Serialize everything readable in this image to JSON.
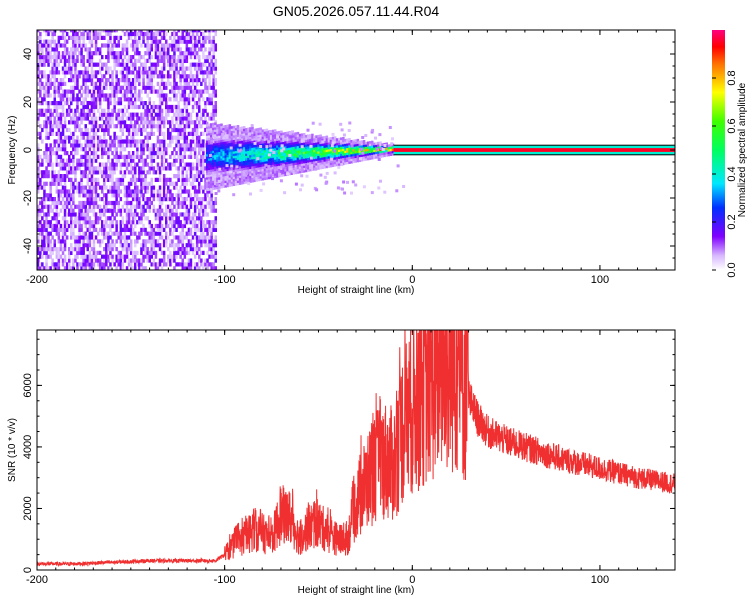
{
  "title": "GN05.2026.057.11.44.R04",
  "chart_data": [
    {
      "type": "heatmap",
      "xlabel": "Height of straight line (km)",
      "ylabel": "Frequency (Hz)",
      "xlim": [
        -200,
        140
      ],
      "ylim": [
        -50,
        50
      ],
      "xticks": [
        -200,
        -100,
        0,
        100
      ],
      "yticks": [
        -40,
        -20,
        0,
        20,
        40
      ],
      "colorbar": {
        "label": "Normalized spectral amplitude",
        "range": [
          0,
          1
        ],
        "ticks": [
          0.0,
          0.2,
          0.4,
          0.6,
          0.8
        ]
      },
      "regions": [
        {
          "description_key": "noise",
          "x_range": [
            -200,
            -105
          ],
          "freq_range": [
            -50,
            50
          ],
          "amplitude": 0.1
        },
        {
          "description_key": "spreading",
          "x_range": [
            -110,
            -10
          ],
          "freq_center": [
            -3,
            0
          ],
          "freq_halfwidth": [
            7,
            1
          ],
          "amplitude_range": [
            0.3,
            0.8
          ]
        },
        {
          "description_key": "line",
          "x_range": [
            -10,
            140
          ],
          "freq": 0,
          "amplitude": 0.95
        }
      ]
    },
    {
      "type": "line",
      "xlabel": "Height of straight line (km)",
      "ylabel": "SNR (10 * v/v)",
      "xlim": [
        -200,
        140
      ],
      "ylim": [
        0,
        7800
      ],
      "xticks": [
        -200,
        -100,
        0,
        100
      ],
      "yticks": [
        0,
        2000,
        4000,
        6000
      ],
      "color": "#f03030",
      "series": [
        {
          "x": [
            -200,
            -180,
            -160,
            -140,
            -120,
            -105,
            -100,
            -95,
            -90,
            -85,
            -80,
            -75,
            -70,
            -65,
            -60,
            -55,
            -50,
            -45,
            -40,
            -35,
            -30,
            -25,
            -20,
            -15,
            -10,
            -5,
            0,
            5,
            10,
            15,
            20,
            25,
            30,
            35,
            40,
            50,
            60,
            70,
            80,
            90,
            100,
            110,
            120,
            130,
            140
          ],
          "y": [
            200,
            200,
            250,
            300,
            300,
            300,
            500,
            800,
            1000,
            1300,
            1200,
            1000,
            1800,
            1700,
            1000,
            1400,
            1500,
            1200,
            1000,
            900,
            2100,
            2800,
            3300,
            3600,
            3400,
            4700,
            5300,
            5800,
            6200,
            6500,
            6800,
            6600,
            5600,
            4900,
            4500,
            4200,
            4000,
            3800,
            3600,
            3450,
            3300,
            3150,
            3000,
            2900,
            2800
          ]
        }
      ]
    }
  ]
}
